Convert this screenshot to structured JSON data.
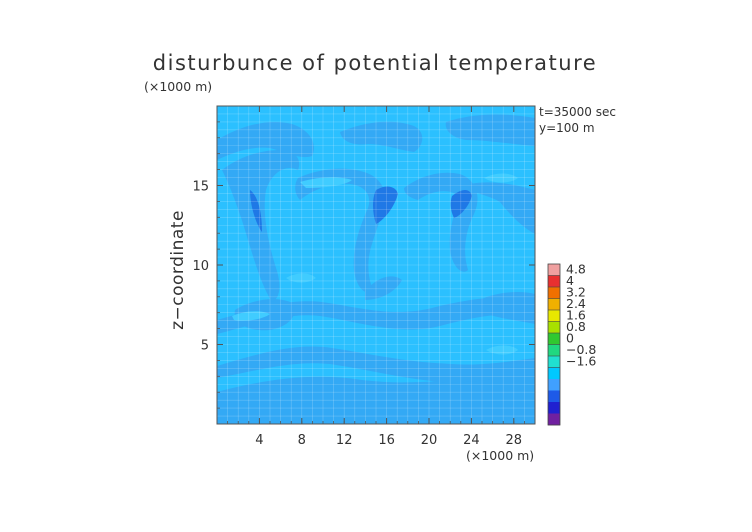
{
  "chart_data": {
    "type": "heatmap",
    "title": "disturbunce of potential temperature",
    "ylabel": "z−coordinate",
    "x_unit_label": "(×1000 m)",
    "y_unit_label": "(×1000 m)",
    "annotations": [
      "t=35000 sec",
      "y=100 m"
    ],
    "xlim": [
      0,
      30
    ],
    "ylim": [
      0,
      20
    ],
    "x_ticks": [
      4,
      8,
      12,
      16,
      20,
      24,
      28
    ],
    "y_ticks": [
      5,
      10,
      15
    ],
    "grid": true,
    "legend_position": "right",
    "colorbar": {
      "labels": [
        "4.8",
        "4",
        "3.2",
        "2.4",
        "1.6",
        "0.8",
        "0",
        "−0.8",
        "−1.6"
      ],
      "colors_top_to_bottom": [
        "#f0a0a0",
        "#e83030",
        "#f07000",
        "#f0b000",
        "#e8e800",
        "#a8e000",
        "#30c830",
        "#20d880",
        "#20e0d0",
        "#00c8ff",
        "#40a0ff",
        "#1e5ae8",
        "#2020d0",
        "#7020a0"
      ]
    },
    "field_colors": {
      "background": "#2bc0ff",
      "weak_negative": "#33a9f5",
      "strong_negative": "#1f78e6",
      "weak_positive": "#40ccff"
    }
  }
}
